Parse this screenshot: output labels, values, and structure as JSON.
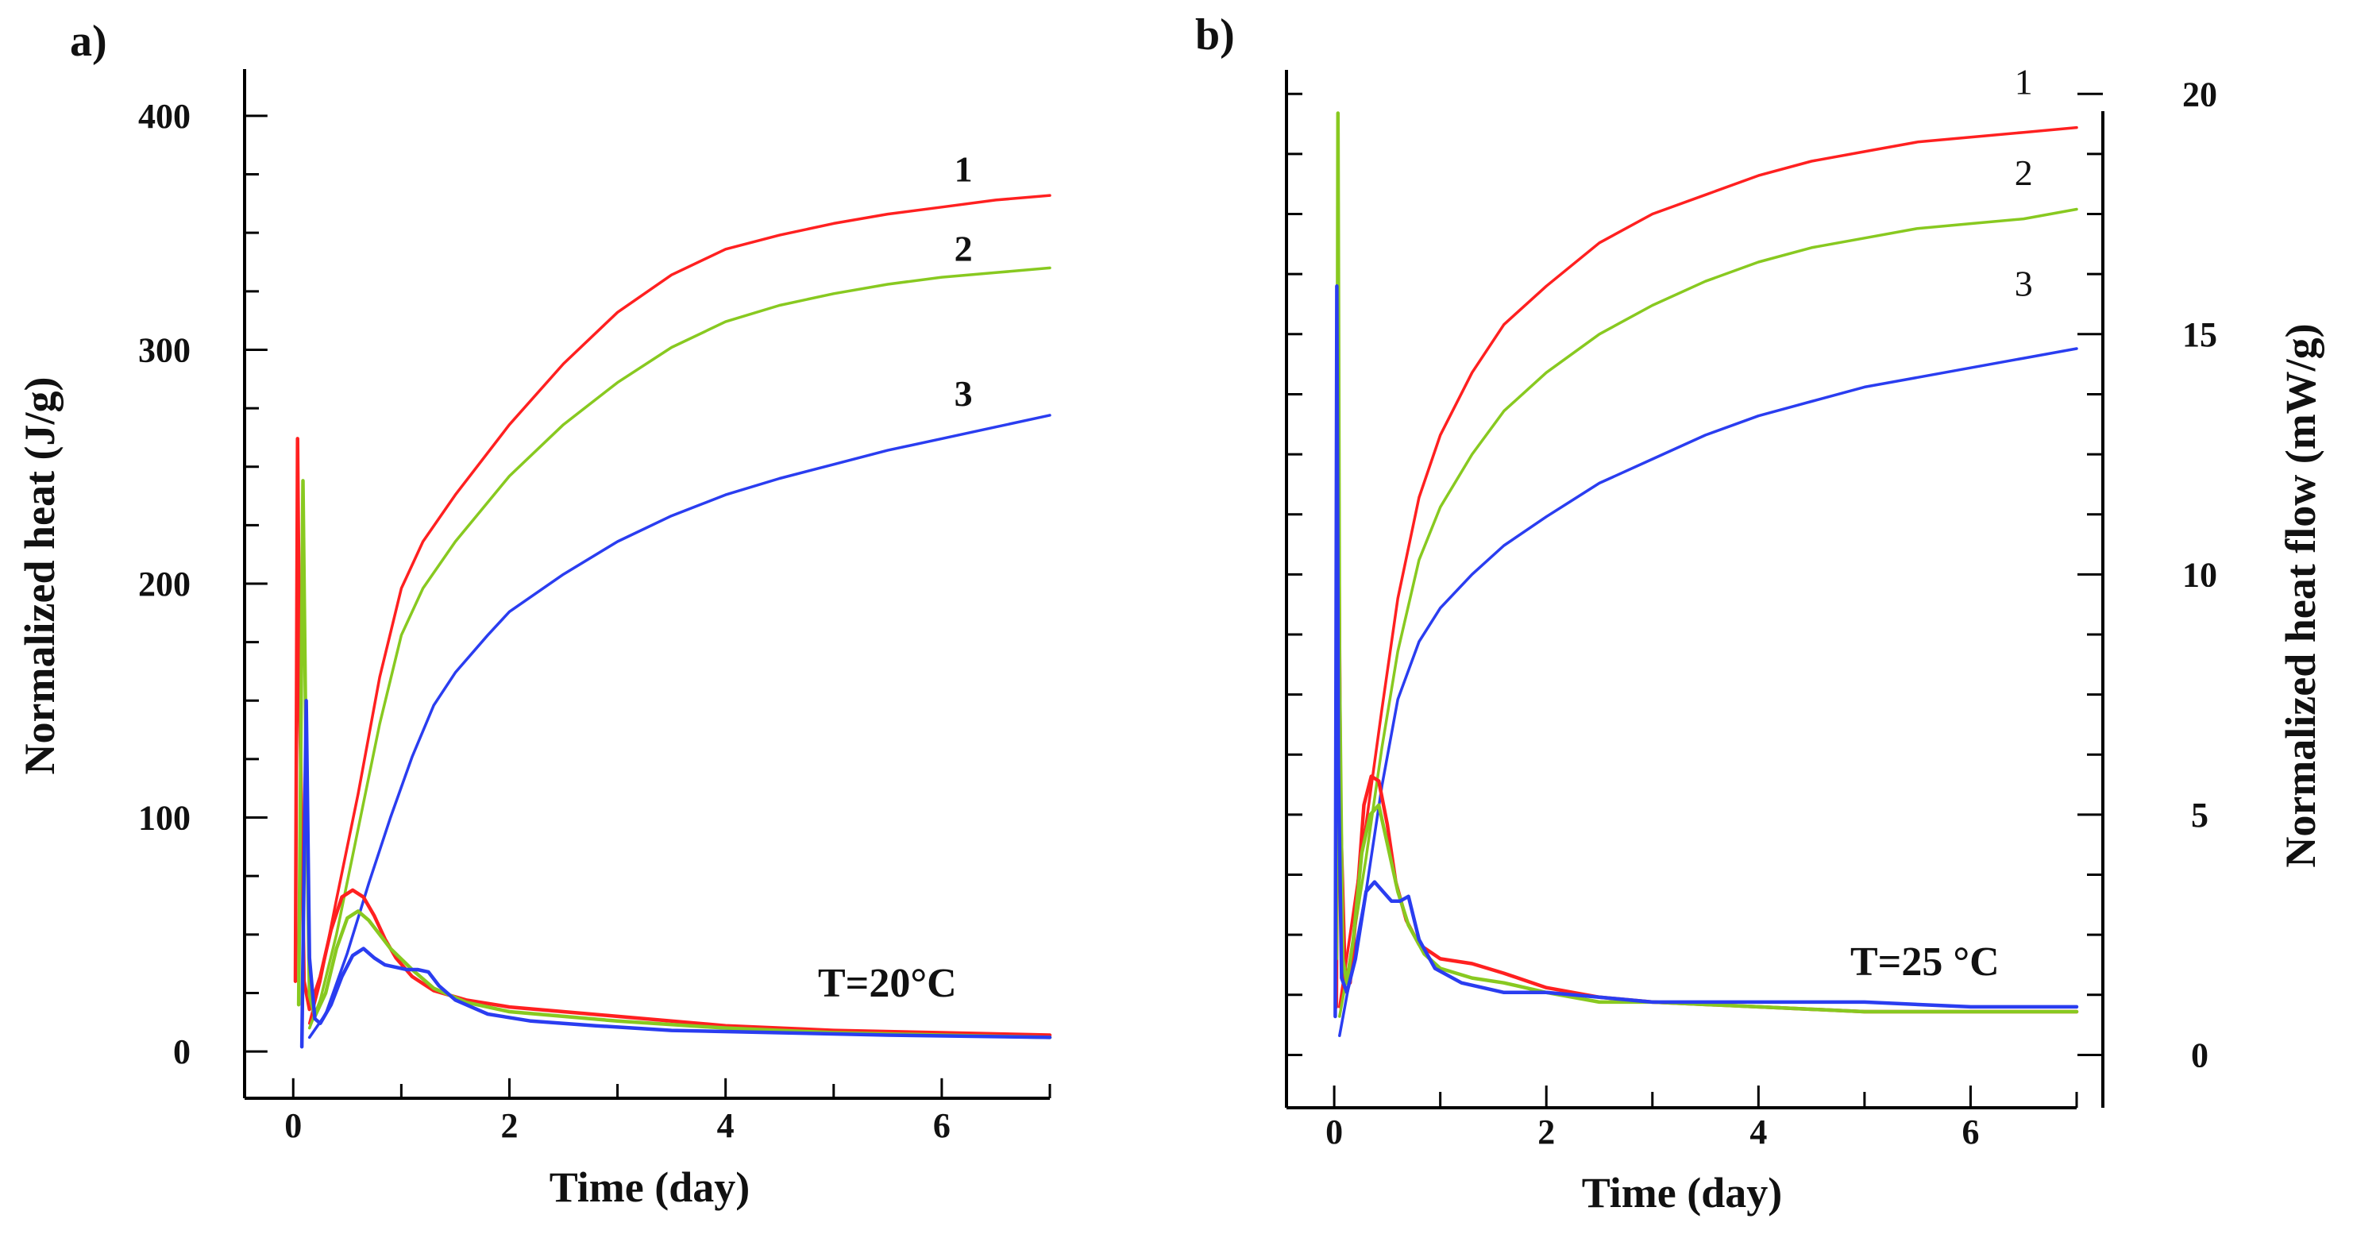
{
  "chart_data": [
    {
      "panel": "a)",
      "type": "line",
      "title": "",
      "annotation": "T=20°C",
      "xlabel": "Time (day)",
      "ylabel": "Normalized heat (J/g)",
      "xlim": [
        -0.45,
        7.0
      ],
      "ylim": [
        -20,
        420
      ],
      "xticks": [
        0,
        2,
        4,
        6
      ],
      "yticks": [
        0,
        100,
        200,
        300,
        400
      ],
      "colors": {
        "1": "#ff2020",
        "2": "#88c920",
        "3": "#2a3df0"
      },
      "series": [
        {
          "name": "1",
          "kind": "cumulative",
          "label_pos": [
            6.2,
            372
          ],
          "x": [
            0.15,
            0.25,
            0.4,
            0.6,
            0.8,
            1.0,
            1.2,
            1.5,
            2.0,
            2.5,
            3.0,
            3.5,
            4.0,
            4.5,
            5.0,
            5.5,
            6.0,
            6.5,
            7.0
          ],
          "y": [
            12,
            30,
            65,
            110,
            160,
            198,
            218,
            238,
            268,
            294,
            316,
            332,
            343,
            349,
            354,
            358,
            361,
            364,
            366
          ]
        },
        {
          "name": "2",
          "kind": "cumulative",
          "label_pos": [
            6.2,
            338
          ],
          "x": [
            0.15,
            0.25,
            0.4,
            0.6,
            0.8,
            1.0,
            1.2,
            1.5,
            2.0,
            2.5,
            3.0,
            3.5,
            4.0,
            4.5,
            5.0,
            5.5,
            6.0,
            6.5,
            7.0
          ],
          "y": [
            10,
            22,
            50,
            95,
            140,
            178,
            198,
            218,
            246,
            268,
            286,
            301,
            312,
            319,
            324,
            328,
            331,
            333,
            335
          ]
        },
        {
          "name": "3",
          "kind": "cumulative",
          "label_pos": [
            6.2,
            276
          ],
          "x": [
            0.15,
            0.3,
            0.5,
            0.7,
            0.9,
            1.1,
            1.3,
            1.5,
            1.8,
            2.0,
            2.5,
            3.0,
            3.5,
            4.0,
            4.5,
            5.0,
            5.5,
            6.0,
            6.5,
            7.0
          ],
          "y": [
            6,
            16,
            42,
            72,
            100,
            126,
            148,
            162,
            178,
            188,
            204,
            218,
            229,
            238,
            245,
            251,
            257,
            262,
            267,
            272
          ]
        },
        {
          "name": "1",
          "kind": "flow",
          "x": [
            0.02,
            0.04,
            0.06,
            0.1,
            0.15,
            0.25,
            0.35,
            0.45,
            0.55,
            0.65,
            0.75,
            0.85,
            0.95,
            1.1,
            1.3,
            1.6,
            2.0,
            2.5,
            3.0,
            4.0,
            5.0,
            6.0,
            7.0
          ],
          "y": [
            30,
            262,
            150,
            30,
            18,
            32,
            52,
            66,
            69,
            66,
            58,
            48,
            40,
            32,
            26,
            22,
            19,
            17,
            15,
            11,
            9,
            8,
            7
          ]
        },
        {
          "name": "2",
          "kind": "flow",
          "x": [
            0.05,
            0.09,
            0.12,
            0.15,
            0.2,
            0.3,
            0.4,
            0.5,
            0.6,
            0.7,
            0.8,
            0.9,
            1.1,
            1.3,
            1.6,
            2.0,
            2.5,
            3.0,
            4.0,
            5.0,
            6.0,
            7.0
          ],
          "y": [
            20,
            244,
            120,
            24,
            15,
            25,
            44,
            57,
            60,
            56,
            50,
            44,
            35,
            27,
            21,
            17,
            15,
            13,
            10,
            8,
            7,
            6
          ]
        },
        {
          "name": "3",
          "kind": "flow",
          "x": [
            0.08,
            0.12,
            0.15,
            0.2,
            0.25,
            0.35,
            0.45,
            0.55,
            0.65,
            0.75,
            0.85,
            0.95,
            1.05,
            1.15,
            1.25,
            1.35,
            1.5,
            1.8,
            2.2,
            2.8,
            3.5,
            4.5,
            5.5,
            7.0
          ],
          "y": [
            2,
            150,
            40,
            14,
            12,
            20,
            32,
            41,
            44,
            40,
            37,
            36,
            35,
            35,
            34,
            28,
            22,
            16,
            13,
            11,
            9,
            8,
            7,
            6
          ]
        }
      ]
    },
    {
      "panel": "b)",
      "type": "line",
      "title": "",
      "annotation": "T=25 °C",
      "xlabel": "Time (day)",
      "ylabel": "Normalized heat flow (mW/g)",
      "ylabel_side": "right",
      "xlim": [
        -0.45,
        7.0
      ],
      "ylim": [
        -1.1,
        20.5
      ],
      "xticks": [
        0,
        2,
        4,
        6
      ],
      "yticks": [
        0,
        5,
        10,
        15,
        20
      ],
      "colors": {
        "1": "#ff2020",
        "2": "#88c920",
        "3": "#2a3df0"
      },
      "series": [
        {
          "name": "1",
          "kind": "cumulative",
          "label_pos": [
            6.5,
            20.0
          ],
          "x": [
            0.05,
            0.15,
            0.3,
            0.45,
            0.6,
            0.8,
            1.0,
            1.3,
            1.6,
            2.0,
            2.5,
            3.0,
            3.5,
            4.0,
            4.5,
            5.0,
            5.5,
            6.0,
            6.5,
            7.0
          ],
          "y": [
            1.0,
            2.5,
            4.8,
            7.2,
            9.5,
            11.6,
            12.9,
            14.2,
            15.2,
            16.0,
            16.9,
            17.5,
            17.9,
            18.3,
            18.6,
            18.8,
            19.0,
            19.1,
            19.2,
            19.3
          ]
        },
        {
          "name": "2",
          "kind": "cumulative",
          "label_pos": [
            6.5,
            18.1
          ],
          "x": [
            0.05,
            0.15,
            0.3,
            0.45,
            0.6,
            0.8,
            1.0,
            1.3,
            1.6,
            2.0,
            2.5,
            3.0,
            3.5,
            4.0,
            4.5,
            5.0,
            5.5,
            6.0,
            6.5,
            7.0
          ],
          "y": [
            0.8,
            2.0,
            4.1,
            6.4,
            8.4,
            10.3,
            11.4,
            12.5,
            13.4,
            14.2,
            15.0,
            15.6,
            16.1,
            16.5,
            16.8,
            17.0,
            17.2,
            17.3,
            17.4,
            17.6
          ]
        },
        {
          "name": "3",
          "kind": "cumulative",
          "label_pos": [
            6.5,
            15.8
          ],
          "x": [
            0.05,
            0.15,
            0.3,
            0.45,
            0.6,
            0.8,
            1.0,
            1.3,
            1.6,
            2.0,
            2.5,
            3.0,
            3.5,
            4.0,
            4.5,
            5.0,
            5.5,
            6.0,
            6.5,
            7.0
          ],
          "y": [
            0.4,
            1.6,
            3.4,
            5.6,
            7.4,
            8.6,
            9.3,
            10.0,
            10.6,
            11.2,
            11.9,
            12.4,
            12.9,
            13.3,
            13.6,
            13.9,
            14.1,
            14.3,
            14.5,
            14.7
          ]
        },
        {
          "name": "1",
          "kind": "flow",
          "x": [
            0.02,
            0.04,
            0.06,
            0.1,
            0.15,
            0.2,
            0.28,
            0.35,
            0.42,
            0.5,
            0.58,
            0.68,
            0.8,
            1.0,
            1.3,
            1.6,
            2.0,
            2.5,
            3.0,
            4.0,
            5.0,
            6.0,
            7.0
          ],
          "y": [
            1.0,
            12.0,
            5.0,
            1.8,
            1.5,
            2.8,
            5.2,
            5.8,
            5.7,
            4.8,
            3.6,
            2.8,
            2.3,
            2.0,
            1.9,
            1.7,
            1.4,
            1.2,
            1.1,
            1.0,
            0.9,
            0.9,
            0.9
          ]
        },
        {
          "name": "2",
          "kind": "flow",
          "x": [
            0.02,
            0.035,
            0.05,
            0.08,
            0.12,
            0.18,
            0.26,
            0.34,
            0.42,
            0.5,
            0.6,
            0.7,
            0.85,
            1.0,
            1.3,
            1.6,
            2.0,
            2.5,
            3.0,
            4.0,
            5.0,
            6.0,
            7.0
          ],
          "y": [
            2.0,
            19.6,
            8.0,
            2.0,
            1.5,
            2.4,
            4.2,
            5.0,
            5.2,
            4.4,
            3.4,
            2.7,
            2.1,
            1.8,
            1.6,
            1.5,
            1.3,
            1.1,
            1.1,
            1.0,
            0.9,
            0.9,
            0.9
          ]
        },
        {
          "name": "3",
          "kind": "flow",
          "x": [
            0.01,
            0.025,
            0.04,
            0.07,
            0.12,
            0.2,
            0.3,
            0.38,
            0.46,
            0.54,
            0.62,
            0.7,
            0.8,
            0.95,
            1.2,
            1.6,
            2.0,
            2.5,
            3.0,
            4.0,
            5.0,
            6.0,
            7.0
          ],
          "y": [
            0.8,
            16.0,
            6.0,
            1.6,
            1.3,
            2.0,
            3.4,
            3.6,
            3.4,
            3.2,
            3.2,
            3.3,
            2.4,
            1.8,
            1.5,
            1.3,
            1.3,
            1.2,
            1.1,
            1.1,
            1.1,
            1.0,
            1.0
          ]
        }
      ]
    }
  ]
}
